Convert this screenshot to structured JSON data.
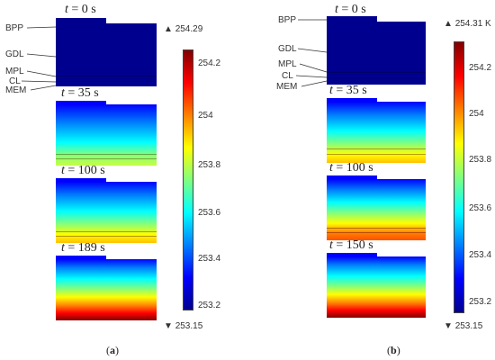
{
  "colors": {
    "scale": [
      "#00008f",
      "#0000ff",
      "#0080ff",
      "#00ffff",
      "#80ff80",
      "#ffff00",
      "#ff8000",
      "#ff0000",
      "#800000"
    ],
    "frame": "#001a80"
  },
  "panel_a": {
    "caption_open": "(",
    "caption_letter": "a",
    "caption_close": ")",
    "layers": [
      "BPP",
      "GDL",
      "MPL",
      "CL",
      "MEM"
    ],
    "max_label": "254.29",
    "min_label": "253.15",
    "max_icon": "triangle-up",
    "min_icon": "triangle-down",
    "ticks": [
      "254.2",
      "254",
      "253.8",
      "253.6",
      "253.4",
      "253.2"
    ],
    "tick_values": [
      254.2,
      254.0,
      253.8,
      253.6,
      253.4,
      253.2
    ],
    "range": [
      253.15,
      254.29
    ],
    "snapshots": [
      {
        "t_var": "t",
        "t_rest": " = 0 s",
        "state": "uniform-cold"
      },
      {
        "t_var": "t",
        "t_rest": " = 35 s",
        "state": "bottom-warm-green"
      },
      {
        "t_var": "t",
        "t_rest": " = 100 s",
        "state": "bottom-warm-yellow"
      },
      {
        "t_var": "t",
        "t_rest": " = 189 s",
        "state": "bottom-hot-red"
      }
    ]
  },
  "panel_b": {
    "caption_open": "(",
    "caption_letter": "b",
    "caption_close": ")",
    "layers": [
      "BPP",
      "GDL",
      "MPL",
      "CL",
      "MEM"
    ],
    "max_label": "254.31 K",
    "min_label": "253.15",
    "max_icon": "triangle-up",
    "min_icon": "triangle-down",
    "ticks": [
      "254.2",
      "254",
      "253.8",
      "253.6",
      "253.4",
      "253.2"
    ],
    "tick_values": [
      254.2,
      254.0,
      253.8,
      253.6,
      253.4,
      253.2
    ],
    "range": [
      253.15,
      254.31
    ],
    "snapshots": [
      {
        "t_var": "t",
        "t_rest": " = 0 s",
        "state": "uniform-cold"
      },
      {
        "t_var": "t",
        "t_rest": " = 35 s",
        "state": "bottom-warm-yellow"
      },
      {
        "t_var": "t",
        "t_rest": " = 100 s",
        "state": "bottom-warm-orange"
      },
      {
        "t_var": "t",
        "t_rest": " = 150 s",
        "state": "bottom-hot-red"
      }
    ]
  }
}
